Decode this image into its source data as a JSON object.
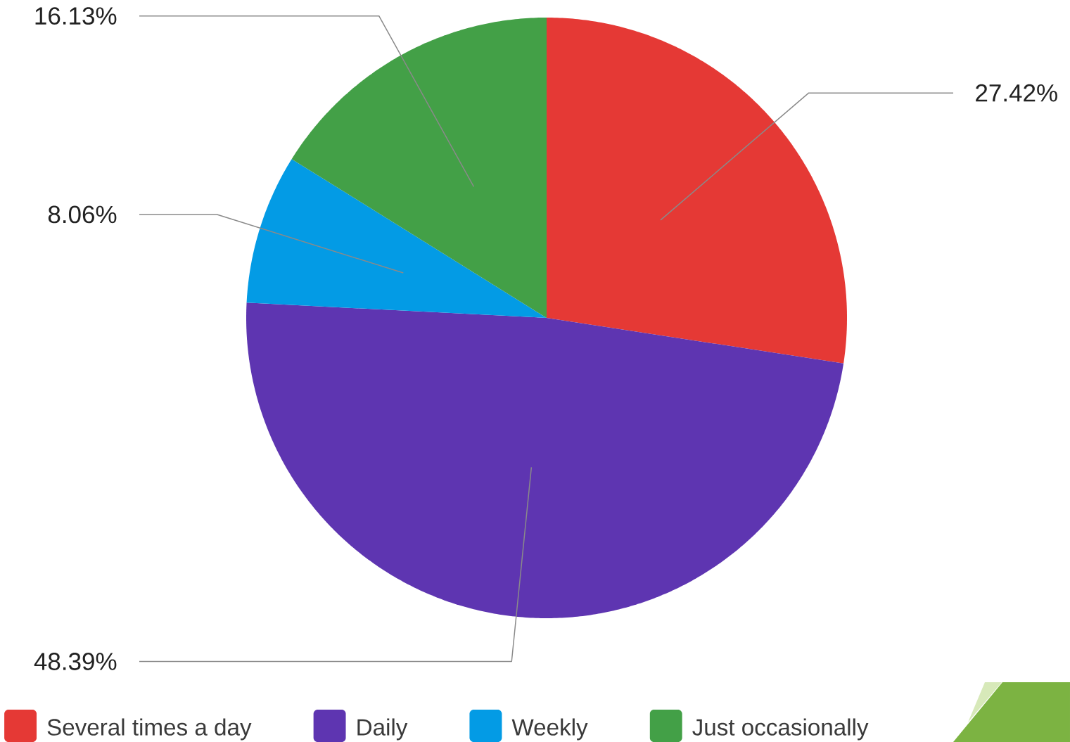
{
  "chart_data": {
    "type": "pie",
    "categories": [
      "Several times a day",
      "Daily",
      "Weekly",
      "Just occasionally"
    ],
    "values": [
      27.42,
      48.39,
      8.06,
      16.13
    ],
    "colors": [
      "#e53935",
      "#5e35b1",
      "#039be5",
      "#43a047"
    ],
    "value_labels": [
      "27.42%",
      "48.39%",
      "8.06%",
      "16.13%"
    ],
    "legend": "bottom"
  }
}
